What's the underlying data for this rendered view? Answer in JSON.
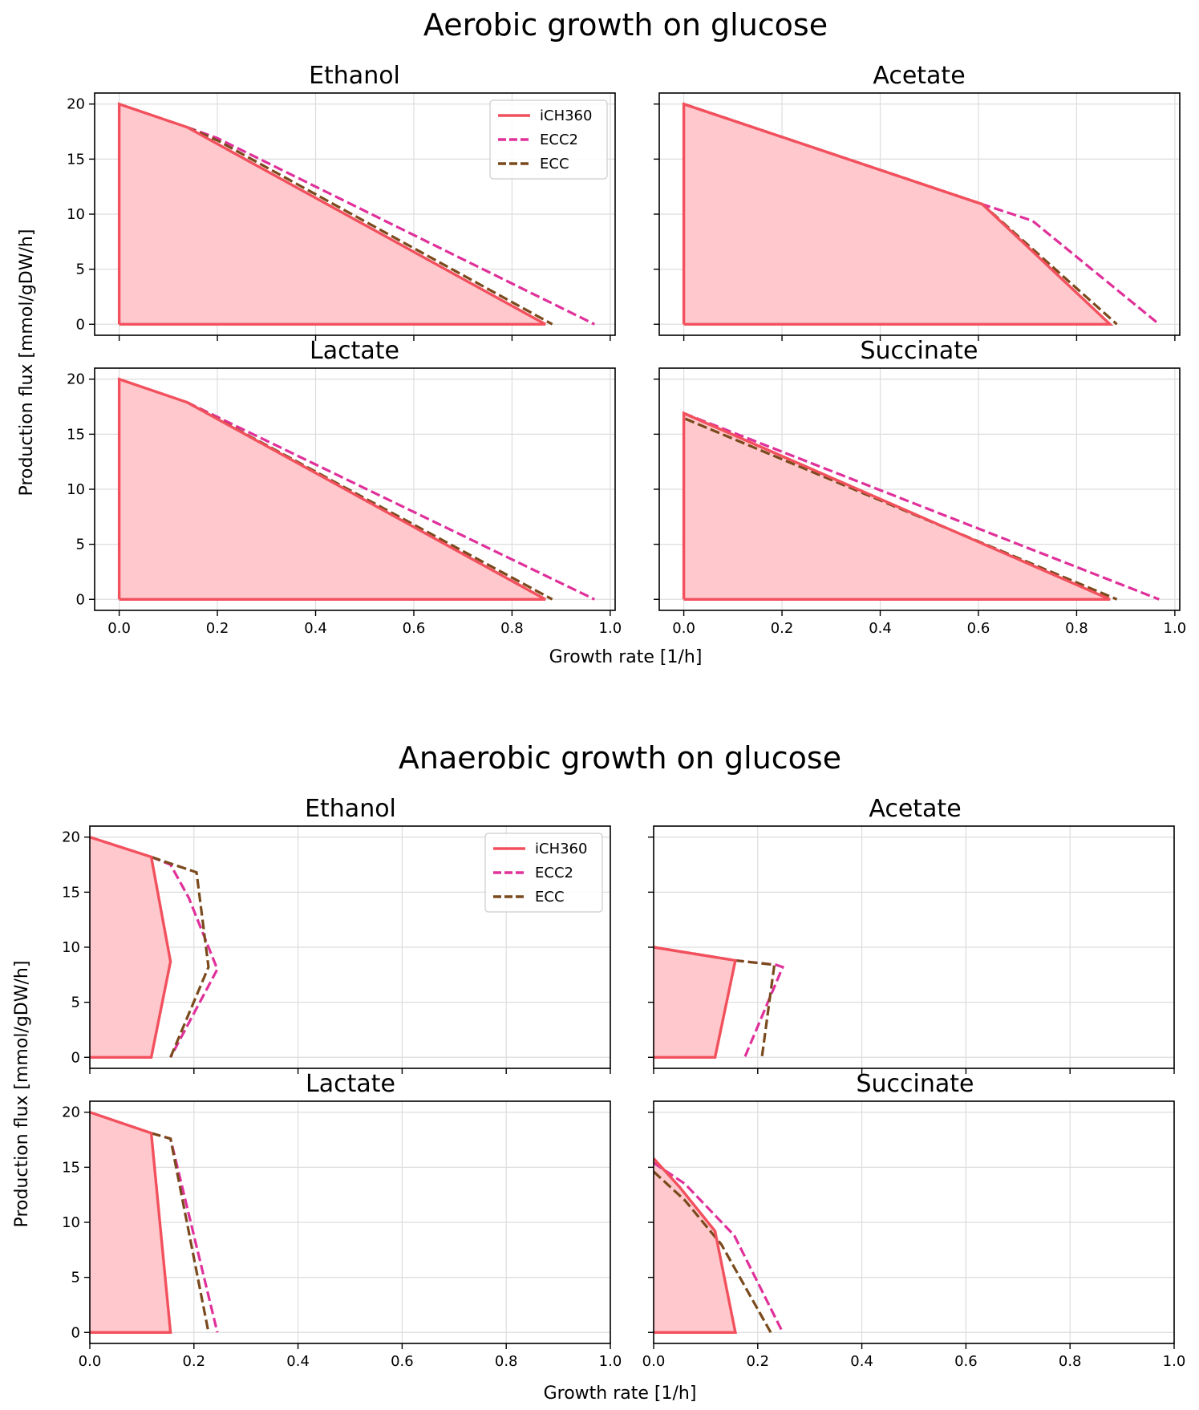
{
  "colors": {
    "iCH360": "#f2505d",
    "ECC2": "#e0309a",
    "ECC": "#7a4a1c",
    "fill": "#ffc8cd",
    "grid": "#dddddd",
    "axes": "#000000"
  },
  "chart_data": [
    {
      "type": "line",
      "group_title": "Aerobic growth on glucose",
      "xlabel": "Growth rate [1/h]",
      "ylabel": "Production flux [mmol/gDW/h]",
      "xlim": [
        -0.05,
        1.01
      ],
      "ylim": [
        -1,
        21
      ],
      "xticks": [
        0.0,
        0.2,
        0.4,
        0.6,
        0.8,
        1.0
      ],
      "xtick_labels": [
        "0.0",
        "0.2",
        "0.4",
        "0.6",
        "0.8",
        "1.0"
      ],
      "yticks": [
        0,
        5,
        10,
        15,
        20
      ],
      "ytick_labels": [
        "0",
        "5",
        "10",
        "15",
        "20"
      ],
      "grid": true,
      "legend_location": "upper right of Ethanol panel",
      "panels": [
        {
          "title": "Ethanol",
          "show_legend": true,
          "series": [
            {
              "name": "iCH360",
              "style": "solid",
              "fill": true,
              "x": [
                0,
                0,
                0.138,
                0.868,
                0
              ],
              "y": [
                0,
                20,
                17.9,
                0,
                0
              ]
            },
            {
              "name": "ECC2",
              "style": "dashed",
              "x": [
                0.138,
                0.2,
                0.968
              ],
              "y": [
                17.9,
                16.9,
                0
              ]
            },
            {
              "name": "ECC",
              "style": "dashed",
              "x": [
                0.138,
                0.2,
                0.882
              ],
              "y": [
                17.9,
                16.7,
                0
              ]
            }
          ]
        },
        {
          "title": "Acetate",
          "show_legend": false,
          "series": [
            {
              "name": "iCH360",
              "style": "solid",
              "fill": true,
              "x": [
                0,
                0,
                0.608,
                0.868,
                0
              ],
              "y": [
                0,
                20,
                10.9,
                0,
                0
              ]
            },
            {
              "name": "ECC2",
              "style": "dashed",
              "x": [
                0,
                0.608,
                0.71,
                0.968
              ],
              "y": [
                20,
                10.9,
                9.4,
                0
              ]
            },
            {
              "name": "ECC",
              "style": "dashed",
              "x": [
                0,
                0.608,
                0.882
              ],
              "y": [
                20,
                10.9,
                0
              ]
            }
          ]
        },
        {
          "title": "Lactate",
          "show_legend": false,
          "series": [
            {
              "name": "iCH360",
              "style": "solid",
              "fill": true,
              "x": [
                0,
                0,
                0.138,
                0.868,
                0
              ],
              "y": [
                0,
                20,
                17.9,
                0,
                0
              ]
            },
            {
              "name": "ECC2",
              "style": "dashed",
              "x": [
                0.138,
                0.968
              ],
              "y": [
                17.9,
                0
              ]
            },
            {
              "name": "ECC",
              "style": "dashed",
              "x": [
                0.138,
                0.882
              ],
              "y": [
                17.9,
                0
              ]
            }
          ]
        },
        {
          "title": "Succinate",
          "show_legend": false,
          "series": [
            {
              "name": "iCH360",
              "style": "solid",
              "fill": true,
              "x": [
                0,
                0,
                0.868,
                0
              ],
              "y": [
                0,
                16.9,
                0,
                0
              ]
            },
            {
              "name": "ECC2",
              "style": "dashed",
              "x": [
                0,
                0.968
              ],
              "y": [
                16.9,
                0
              ]
            },
            {
              "name": "ECC",
              "style": "dashed",
              "x": [
                0.003,
                0.882
              ],
              "y": [
                16.4,
                0
              ]
            }
          ]
        }
      ]
    },
    {
      "type": "line",
      "group_title": "Anaerobic growth on glucose",
      "xlabel": "Growth rate [1/h]",
      "ylabel": "Production flux [mmol/gDW/h]",
      "xlim": [
        0,
        1.0
      ],
      "ylim": [
        -1,
        21
      ],
      "xticks": [
        0.0,
        0.2,
        0.4,
        0.6,
        0.8,
        1.0
      ],
      "xtick_labels": [
        "0.0",
        "0.2",
        "0.4",
        "0.6",
        "0.8",
        "1.0"
      ],
      "yticks": [
        0,
        5,
        10,
        15,
        20
      ],
      "ytick_labels": [
        "0",
        "5",
        "10",
        "15",
        "20"
      ],
      "grid": true,
      "legend_location": "upper right of Ethanol panel",
      "panels": [
        {
          "title": "Ethanol",
          "show_legend": true,
          "series": [
            {
              "name": "iCH360",
              "style": "solid",
              "fill": true,
              "x": [
                0,
                0.118,
                0.155,
                0.118,
                0
              ],
              "y": [
                20,
                18.2,
                8.7,
                0,
                0
              ]
            },
            {
              "name": "ECC2",
              "style": "dashed",
              "x": [
                0.118,
                0.155,
                0.19,
                0.245,
                0.155
              ],
              "y": [
                18.2,
                17.5,
                14.5,
                8.0,
                0
              ]
            },
            {
              "name": "ECC",
              "style": "dashed",
              "x": [
                0.118,
                0.155,
                0.205,
                0.228,
                0.155
              ],
              "y": [
                18.2,
                17.6,
                16.8,
                8.2,
                0
              ]
            }
          ]
        },
        {
          "title": "Acetate",
          "show_legend": false,
          "series": [
            {
              "name": "iCH360",
              "style": "solid",
              "fill": true,
              "x": [
                0,
                0.157,
                0.118,
                0
              ],
              "y": [
                10,
                8.8,
                0,
                0
              ]
            },
            {
              "name": "ECC2",
              "style": "dashed",
              "x": [
                0,
                0.157,
                0.235,
                0.248,
                0.175
              ],
              "y": [
                10,
                8.8,
                8.4,
                8.2,
                0
              ]
            },
            {
              "name": "ECC",
              "style": "dashed",
              "x": [
                0,
                0.157,
                0.232,
                0.225,
                0.208
              ],
              "y": [
                10,
                8.8,
                8.4,
                6.0,
                0
              ]
            }
          ]
        },
        {
          "title": "Lactate",
          "show_legend": false,
          "series": [
            {
              "name": "iCH360",
              "style": "solid",
              "fill": true,
              "x": [
                0,
                0.118,
                0.155,
                0
              ],
              "y": [
                20,
                18.1,
                0,
                0
              ]
            },
            {
              "name": "ECC2",
              "style": "dashed",
              "x": [
                0.118,
                0.155,
                0.245
              ],
              "y": [
                18.1,
                17.6,
                0
              ]
            },
            {
              "name": "ECC",
              "style": "dashed",
              "x": [
                0.118,
                0.155,
                0.228
              ],
              "y": [
                18.1,
                17.6,
                0
              ]
            }
          ]
        },
        {
          "title": "Succinate",
          "show_legend": false,
          "series": [
            {
              "name": "iCH360",
              "style": "solid",
              "fill": true,
              "x": [
                0,
                0.05,
                0.118,
                0.157,
                0
              ],
              "y": [
                15.8,
                13.2,
                9.2,
                0,
                0
              ]
            },
            {
              "name": "ECC2",
              "style": "dashed",
              "x": [
                0,
                0.06,
                0.155,
                0.248
              ],
              "y": [
                15.4,
                13.5,
                8.8,
                0
              ]
            },
            {
              "name": "ECC",
              "style": "dashed",
              "x": [
                0,
                0.06,
                0.13,
                0.225
              ],
              "y": [
                14.6,
                12.0,
                8.0,
                0
              ]
            }
          ]
        }
      ]
    }
  ]
}
